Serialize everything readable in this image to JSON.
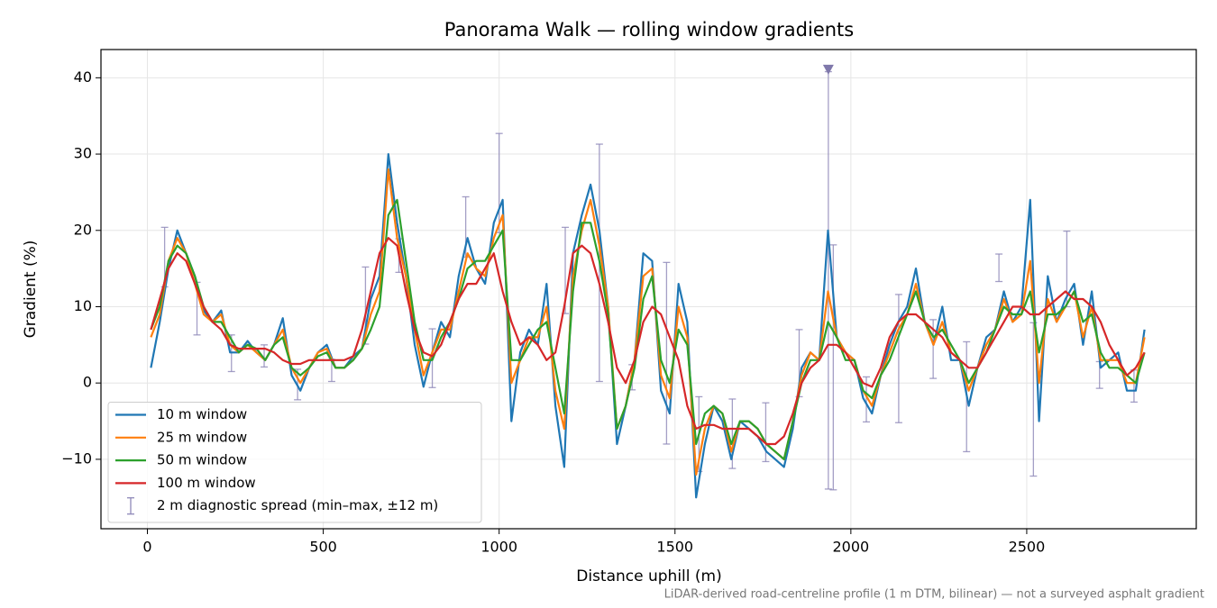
{
  "chart_data": {
    "type": "line",
    "title": "Panorama Walk — rolling window gradients",
    "xlabel": "Distance uphill (m)",
    "ylabel": "Gradient (%)",
    "footnote": "LiDAR-derived road-centreline profile (1 m DTM, bilinear) — not a surveyed asphalt gradient",
    "x": [
      10,
      35,
      60,
      85,
      110,
      135,
      160,
      185,
      210,
      235,
      260,
      285,
      310,
      335,
      360,
      385,
      410,
      435,
      460,
      485,
      510,
      535,
      560,
      585,
      610,
      635,
      660,
      685,
      710,
      735,
      760,
      785,
      810,
      835,
      860,
      885,
      910,
      935,
      960,
      985,
      1010,
      1035,
      1060,
      1085,
      1110,
      1135,
      1160,
      1185,
      1210,
      1235,
      1260,
      1285,
      1310,
      1335,
      1360,
      1385,
      1410,
      1435,
      1460,
      1485,
      1510,
      1535,
      1560,
      1585,
      1610,
      1635,
      1660,
      1685,
      1710,
      1735,
      1760,
      1785,
      1810,
      1835,
      1860,
      1885,
      1910,
      1935,
      1960,
      1985,
      2010,
      2035,
      2060,
      2085,
      2110,
      2135,
      2160,
      2185,
      2210,
      2235,
      2260,
      2285,
      2310,
      2335,
      2360,
      2385,
      2410,
      2435,
      2460,
      2485,
      2510,
      2535,
      2560,
      2585,
      2610,
      2635,
      2660,
      2685,
      2710,
      2735,
      2760,
      2785,
      2810,
      2835
    ],
    "series": [
      {
        "name": "10 m window",
        "color": "#1f77b4",
        "values": [
          2,
          8,
          15,
          20,
          17,
          14,
          9.5,
          8,
          9.5,
          4,
          4,
          5.5,
          4,
          3,
          5,
          8.5,
          1,
          -1,
          2,
          4,
          5,
          2,
          2,
          3.5,
          4.5,
          11,
          14,
          30,
          21,
          14,
          5,
          -0.5,
          4,
          8,
          6,
          14,
          19,
          15,
          13,
          21,
          24,
          -5,
          4,
          7,
          5,
          13,
          -3,
          -11,
          17,
          22,
          26,
          20,
          10,
          -8,
          -3,
          3,
          17,
          16,
          -1,
          -4,
          13,
          8,
          -15,
          -8,
          -3,
          -5,
          -10,
          -5,
          -6,
          -7,
          -9,
          -10,
          -11,
          -6,
          2,
          4,
          3,
          20,
          6,
          4,
          3,
          -2,
          -4,
          1,
          5,
          8,
          10,
          15,
          8,
          5,
          10,
          3,
          3,
          -3,
          2,
          6,
          7,
          12,
          8,
          10,
          24,
          -5,
          14,
          8,
          11,
          13,
          5,
          12,
          2,
          3,
          4,
          -1,
          -1,
          7
        ]
      },
      {
        "name": "25 m window",
        "color": "#ff7f0e",
        "values": [
          6,
          9,
          16,
          19,
          17,
          13,
          9,
          8,
          9,
          5,
          4,
          5,
          4,
          3,
          5,
          7,
          2,
          0,
          2,
          4,
          4.5,
          2,
          2,
          3,
          4.5,
          9,
          12,
          28,
          19,
          14,
          7,
          1,
          4,
          7,
          7,
          12,
          17,
          15,
          14,
          19,
          22,
          0,
          3,
          6,
          6,
          10,
          -1,
          -6,
          14,
          20,
          24,
          18,
          10,
          -6,
          -3,
          3,
          14,
          15,
          1,
          -2,
          10,
          6,
          -12,
          -6,
          -3,
          -4,
          -9,
          -5,
          -5,
          -6,
          -8,
          -9,
          -10,
          -5,
          1,
          4,
          3,
          12,
          6,
          4,
          3,
          -1,
          -3,
          1,
          4,
          7,
          9,
          13,
          8,
          5,
          8,
          4,
          3,
          -1,
          2,
          5,
          7,
          11,
          8,
          9,
          16,
          0,
          11,
          8,
          10,
          12,
          6,
          10,
          3,
          3,
          3,
          0,
          0,
          6
        ]
      },
      {
        "name": "50 m window",
        "color": "#2ca02c",
        "values": [
          7,
          10,
          16,
          18,
          17,
          14,
          10,
          8,
          8,
          6,
          4,
          5,
          4.5,
          3,
          5,
          6,
          2,
          1,
          2,
          3.5,
          4,
          2,
          2,
          3,
          4.5,
          7,
          10,
          22,
          24,
          16,
          8,
          3,
          3,
          6,
          8,
          11,
          15,
          16,
          16,
          18,
          20,
          3,
          3,
          5,
          7,
          8,
          2,
          -4,
          12,
          21,
          21,
          16,
          9,
          -6,
          -3,
          2,
          11,
          14,
          3,
          0,
          7,
          5,
          -8,
          -4,
          -3,
          -4,
          -8,
          -5,
          -5,
          -6,
          -8,
          -9,
          -10,
          -5,
          0,
          3,
          3,
          8,
          6,
          3,
          3,
          -1,
          -2,
          1,
          3,
          6,
          9,
          12,
          8,
          6,
          7,
          5,
          3,
          0,
          2,
          4,
          7,
          10,
          9,
          9,
          12,
          4,
          9,
          9,
          10,
          12,
          8,
          9,
          4,
          2,
          2,
          1,
          0,
          4
        ]
      },
      {
        "name": "100 m window",
        "color": "#d62728",
        "values": [
          7,
          11,
          15,
          17,
          16,
          13,
          10,
          8,
          7,
          5,
          4.5,
          4.5,
          4.5,
          4.5,
          4,
          3,
          2.5,
          2.5,
          3,
          3,
          3,
          3,
          3,
          3.5,
          7,
          12,
          17,
          19,
          18,
          12,
          7,
          4,
          3.5,
          5,
          8,
          11,
          13,
          13,
          15,
          17,
          12,
          8,
          5,
          6,
          5,
          3,
          4,
          10,
          17,
          18,
          17,
          13,
          8,
          2,
          0,
          3,
          8,
          10,
          9,
          6,
          3,
          -3,
          -6,
          -5.5,
          -5.5,
          -6,
          -6,
          -6,
          -6,
          -7,
          -8,
          -8,
          -7,
          -4,
          0,
          2,
          3,
          5,
          5,
          4,
          2,
          0,
          -0.5,
          2,
          6,
          8,
          9,
          9,
          8,
          7,
          6,
          4,
          3,
          2,
          2,
          4,
          6,
          8,
          10,
          10,
          9,
          9,
          10,
          11,
          12,
          11,
          11,
          10,
          8,
          5,
          3,
          1,
          2,
          4
        ]
      }
    ],
    "errorbars": {
      "name": "2 m diagnostic spread (min–max, ±12 m)",
      "color": "#8e88b8",
      "x": [
        49,
        141,
        239,
        332,
        427,
        524,
        620,
        715,
        810,
        905,
        1000,
        1188,
        1285,
        1378,
        1476,
        1568,
        1663,
        1758,
        1853,
        1936,
        1950,
        2044,
        2136,
        2234,
        2329,
        2421,
        2519,
        2614,
        2707,
        2805
      ],
      "low": [
        12.6,
        6.3,
        1.5,
        2.1,
        -2.2,
        0.2,
        5.1,
        14.5,
        -0.6,
        16.5,
        19.7,
        9.1,
        0.2,
        -0.9,
        -8.0,
        -11.6,
        -11.2,
        -10.3,
        -1.8,
        -13.9,
        -14.0,
        -5.1,
        -5.2,
        0.6,
        -9.0,
        13.3,
        -12.2,
        10.0,
        -0.7,
        -2.5
      ],
      "high": [
        20.4,
        13.2,
        6.3,
        5.0,
        1.8,
        3.1,
        15.2,
        18.9,
        7.1,
        24.4,
        32.7,
        20.4,
        31.3,
        2.4,
        15.8,
        -1.8,
        -2.1,
        -2.6,
        7.0,
        40.8,
        18.1,
        0.8,
        11.6,
        8.3,
        5.4,
        16.9,
        7.9,
        19.9,
        2.8,
        1.7
      ]
    },
    "markers": {
      "x": [
        1936
      ],
      "y": [
        41
      ],
      "color": "#7f78ab"
    },
    "xlim": [
      -132,
      2982
    ],
    "ylim": [
      -19.1,
      43.7
    ],
    "xticks": [
      0,
      500,
      1000,
      1500,
      2000,
      2500
    ],
    "yticks": [
      {
        "value": -10,
        "label": "−10"
      },
      0,
      10,
      20,
      30,
      40
    ],
    "grid": true,
    "legend": "lower left"
  }
}
